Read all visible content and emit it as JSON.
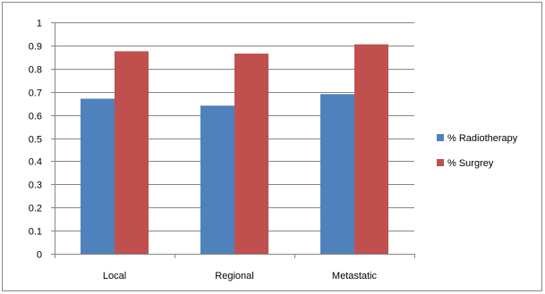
{
  "chart_data": {
    "type": "bar",
    "categories": [
      "Local",
      "Regional",
      "Metastatic"
    ],
    "series": [
      {
        "name": "% Radiotherapy",
        "values": [
          0.67,
          0.64,
          0.69
        ],
        "color": "#4F81BD"
      },
      {
        "name": "% Surgrey",
        "values": [
          0.875,
          0.865,
          0.905
        ],
        "color": "#C0504D"
      }
    ],
    "ylim": [
      0,
      1
    ],
    "yticks": [
      0,
      0.1,
      0.2,
      0.3,
      0.4,
      0.5,
      0.6,
      0.7,
      0.8,
      0.9,
      1
    ],
    "ytick_labels": [
      "0",
      "0.1",
      "0.2",
      "0.3",
      "0.4",
      "0.5",
      "0.6",
      "0.7",
      "0.8",
      "0.9",
      "1"
    ],
    "grid": true,
    "legend": "right",
    "title": "",
    "xlabel": "",
    "ylabel": ""
  }
}
